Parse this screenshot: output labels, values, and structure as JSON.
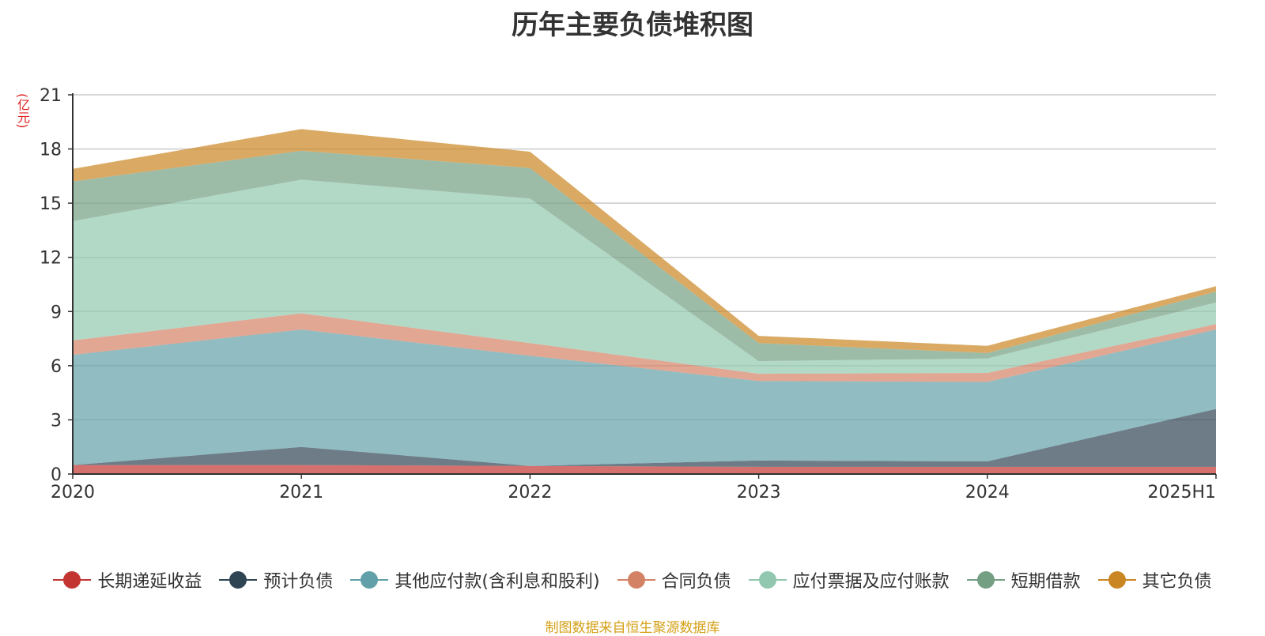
{
  "title": "历年主要负债堆积图",
  "unit": "亿元",
  "source_note": "制图数据来自恒生聚源数据库",
  "chart_data": {
    "type": "area",
    "stacked": true,
    "title": "历年主要负债堆积图",
    "ylabel": "亿元",
    "categories": [
      "2020",
      "2021",
      "2022",
      "2023",
      "2024",
      "2025H1"
    ],
    "ylim": [
      0,
      21
    ],
    "yticks": [
      0,
      3,
      6,
      9,
      12,
      15,
      18,
      21
    ],
    "grid": true,
    "legend_position": "bottom",
    "series": [
      {
        "name": "长期递延收益",
        "color": "#c23531",
        "values": [
          0.5,
          0.5,
          0.45,
          0.4,
          0.4,
          0.4
        ]
      },
      {
        "name": "预计负债",
        "color": "#2f4554",
        "values": [
          0.0,
          1.0,
          0.0,
          0.35,
          0.3,
          3.2
        ]
      },
      {
        "name": "其他应付款(含利息和股利)",
        "color": "#61a0a8",
        "values": [
          6.1,
          6.5,
          6.1,
          4.4,
          4.4,
          4.4
        ]
      },
      {
        "name": "合同负债",
        "color": "#d48265",
        "values": [
          0.8,
          0.9,
          0.7,
          0.4,
          0.5,
          0.3
        ]
      },
      {
        "name": "应付票据及应付账款",
        "color": "#91c7ae",
        "values": [
          6.6,
          7.4,
          8.0,
          0.7,
          0.8,
          1.2
        ]
      },
      {
        "name": "短期借款",
        "color": "#749f83",
        "values": [
          2.2,
          1.6,
          1.7,
          1.0,
          0.3,
          0.6
        ]
      },
      {
        "name": "其它负债",
        "color": "#ca8622",
        "values": [
          0.7,
          1.2,
          0.9,
          0.4,
          0.4,
          0.3
        ]
      }
    ]
  }
}
